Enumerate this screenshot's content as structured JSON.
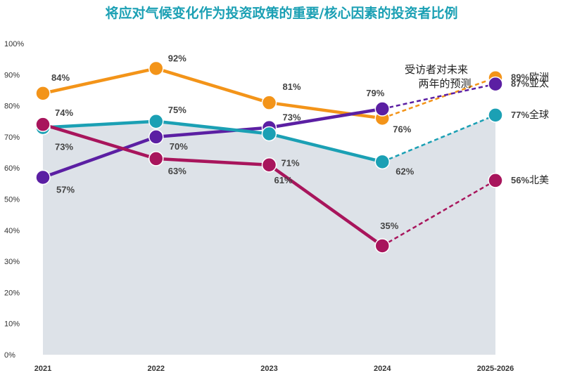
{
  "chart_data": {
    "type": "line",
    "title": "将应对气候变化作为投资政策的重要/核心因素的投资者比例",
    "categories": [
      "2021",
      "2022",
      "2023",
      "2024",
      "2025-2026"
    ],
    "ylim": [
      0,
      100
    ],
    "yticks": [
      "0%",
      "10%",
      "20%",
      "30%",
      "40%",
      "50%",
      "60%",
      "70%",
      "80%",
      "90%",
      "100%"
    ],
    "annotation": [
      "受访者对未来",
      "两年的预测"
    ],
    "forecast_from_index": 3,
    "series": [
      {
        "name": "欧洲",
        "color": "#f39419",
        "values": [
          84,
          92,
          81,
          76,
          89
        ],
        "labels": [
          "84%",
          "92%",
          "81%",
          "76%",
          "89%"
        ]
      },
      {
        "name": "亚太",
        "color": "#5b1fa3",
        "values": [
          57,
          70,
          73,
          79,
          87
        ],
        "labels": [
          "57%",
          "70%",
          "73%",
          "79%",
          "87%"
        ]
      },
      {
        "name": "全球",
        "color": "#1ba0b4",
        "values": [
          73,
          75,
          71,
          62,
          77
        ],
        "area": true,
        "labels": [
          "73%",
          "75%",
          "71%",
          "62%",
          "77%"
        ]
      },
      {
        "name": "北美",
        "color": "#a8155c",
        "values": [
          74,
          63,
          61,
          35,
          56
        ],
        "labels": [
          "74%",
          "63%",
          "61%",
          "35%",
          "56%"
        ]
      }
    ]
  }
}
